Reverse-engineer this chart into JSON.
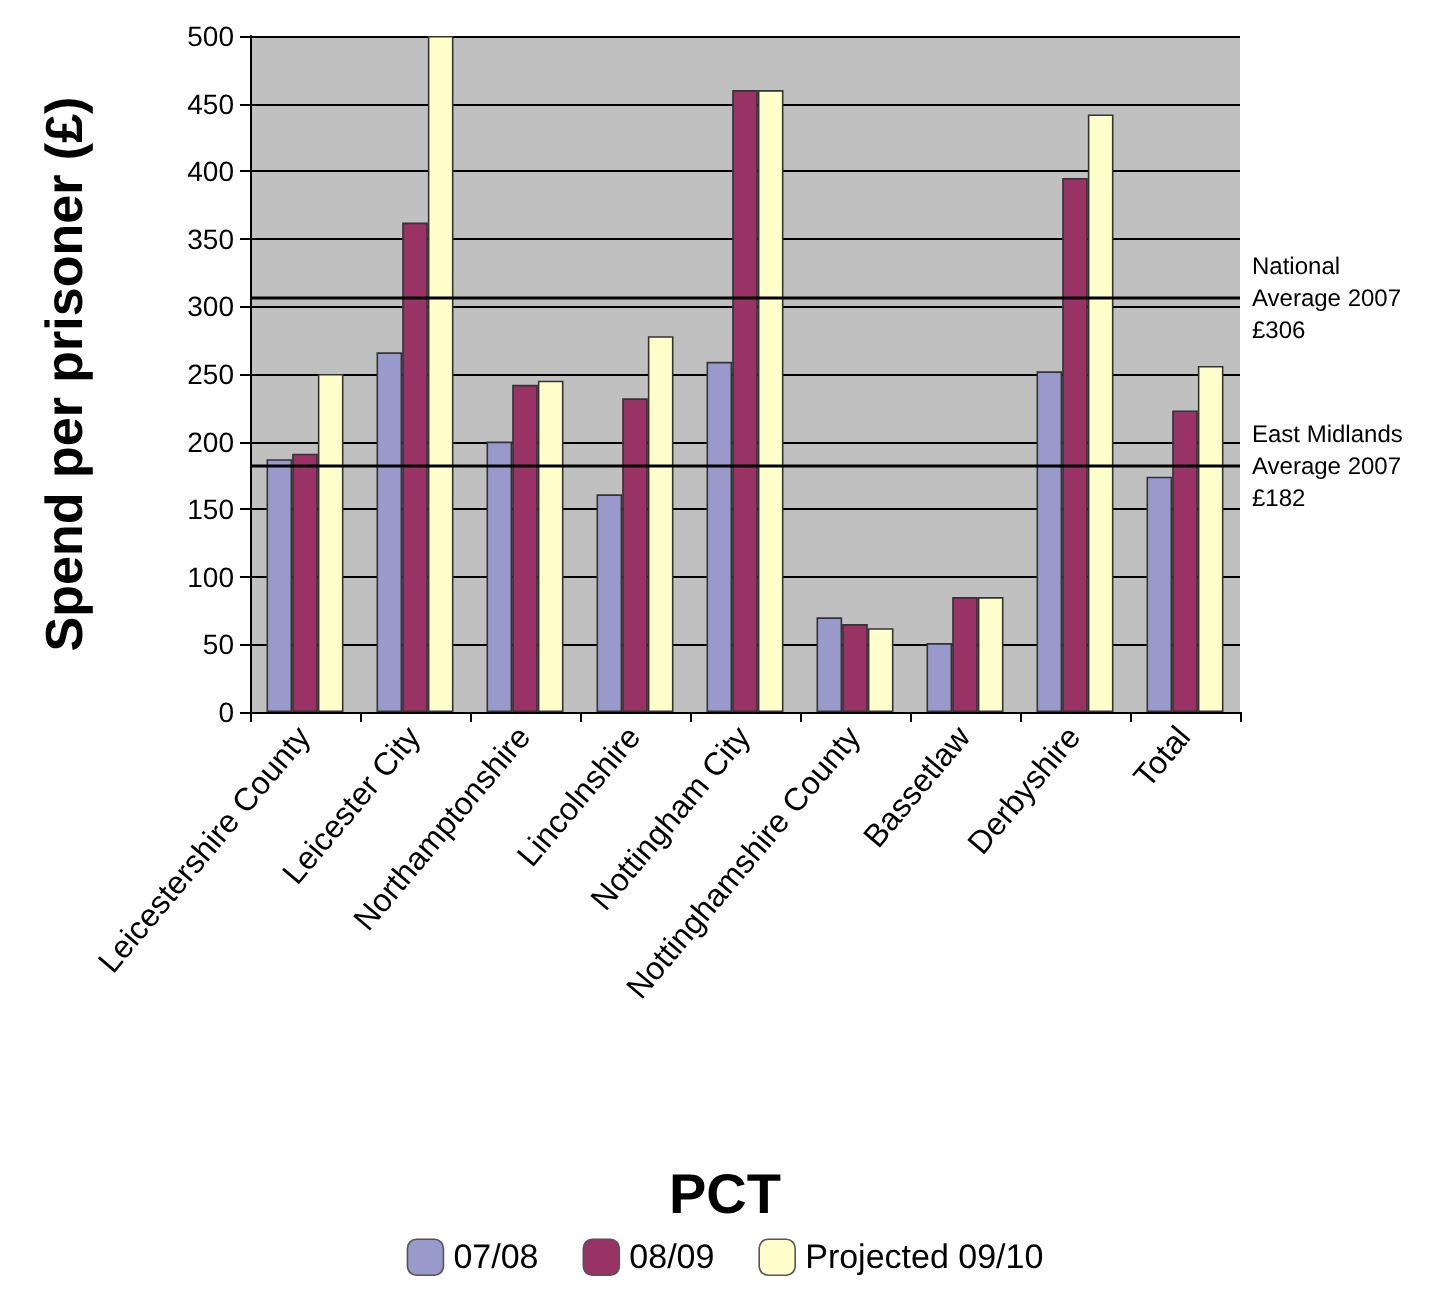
{
  "chart_data": {
    "type": "bar",
    "xlabel": "PCT",
    "ylabel": "Spend per prisoner (£)",
    "categories": [
      "Leicestershire County",
      "Leicester City",
      "Northamptonshire",
      "Lincolnshire",
      "Nottingham City",
      "Nottinghamshire County",
      "Bassetlaw",
      "Derbyshire",
      "Total"
    ],
    "series": [
      {
        "name": "07/08",
        "color": "#9999cc",
        "values": [
          187,
          266,
          200,
          161,
          259,
          70,
          51,
          252,
          174
        ]
      },
      {
        "name": "08/09",
        "color": "#993366",
        "values": [
          191,
          362,
          242,
          232,
          460,
          65,
          85,
          395,
          223
        ]
      },
      {
        "name": "Projected 09/10",
        "color": "#ffffcc",
        "values": [
          250,
          500,
          245,
          278,
          460,
          62,
          85,
          442,
          256
        ]
      }
    ],
    "ylim": [
      0,
      500
    ],
    "yticks": [
      0,
      50,
      100,
      150,
      200,
      250,
      300,
      350,
      400,
      450,
      500
    ],
    "grid": "y",
    "legend": "bottom",
    "ref_lines": [
      {
        "axis": "y",
        "value": 306,
        "label": "National Average 2007 £306"
      },
      {
        "axis": "y",
        "value": 182,
        "label": "East Midlands Average 2007 £182"
      }
    ]
  }
}
